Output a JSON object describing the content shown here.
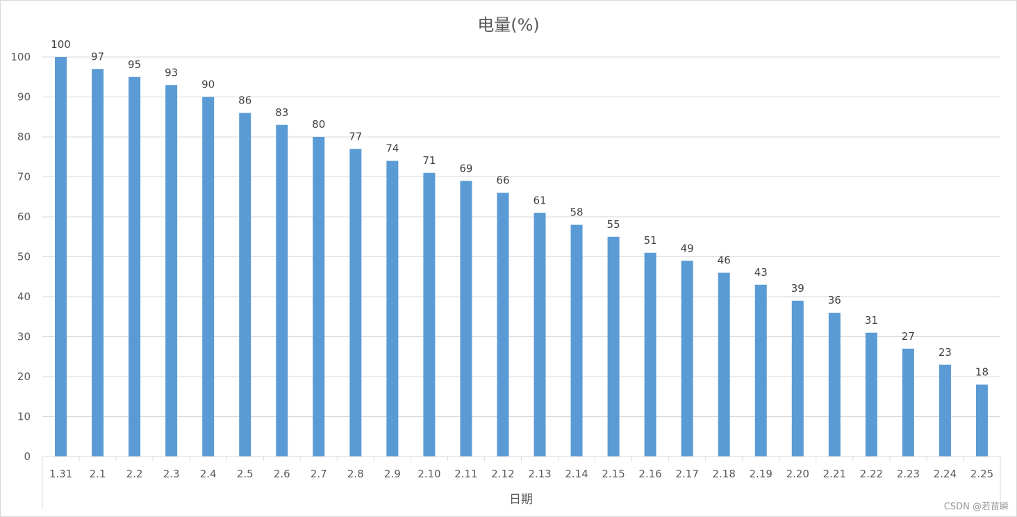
{
  "chart_data": {
    "type": "bar",
    "title": "电量(%)",
    "xlabel": "日期",
    "ylabel": "",
    "ylim": [
      0,
      100
    ],
    "yticks": [
      0,
      10,
      20,
      30,
      40,
      50,
      60,
      70,
      80,
      90,
      100
    ],
    "grid": true,
    "legend": "none",
    "bar_color": "#5b9bd5",
    "categories": [
      "1.31",
      "2.1",
      "2.2",
      "2.3",
      "2.4",
      "2.5",
      "2.6",
      "2.7",
      "2.8",
      "2.9",
      "2.10",
      "2.11",
      "2.12",
      "2.13",
      "2.14",
      "2.15",
      "2.16",
      "2.17",
      "2.18",
      "2.19",
      "2.20",
      "2.21",
      "2.22",
      "2.23",
      "2.24",
      "2.25"
    ],
    "values": [
      100,
      97,
      95,
      93,
      90,
      86,
      83,
      80,
      77,
      74,
      71,
      69,
      66,
      61,
      58,
      55,
      51,
      49,
      46,
      43,
      39,
      36,
      31,
      27,
      23,
      18
    ]
  },
  "watermark": "CSDN @若苗瞬"
}
